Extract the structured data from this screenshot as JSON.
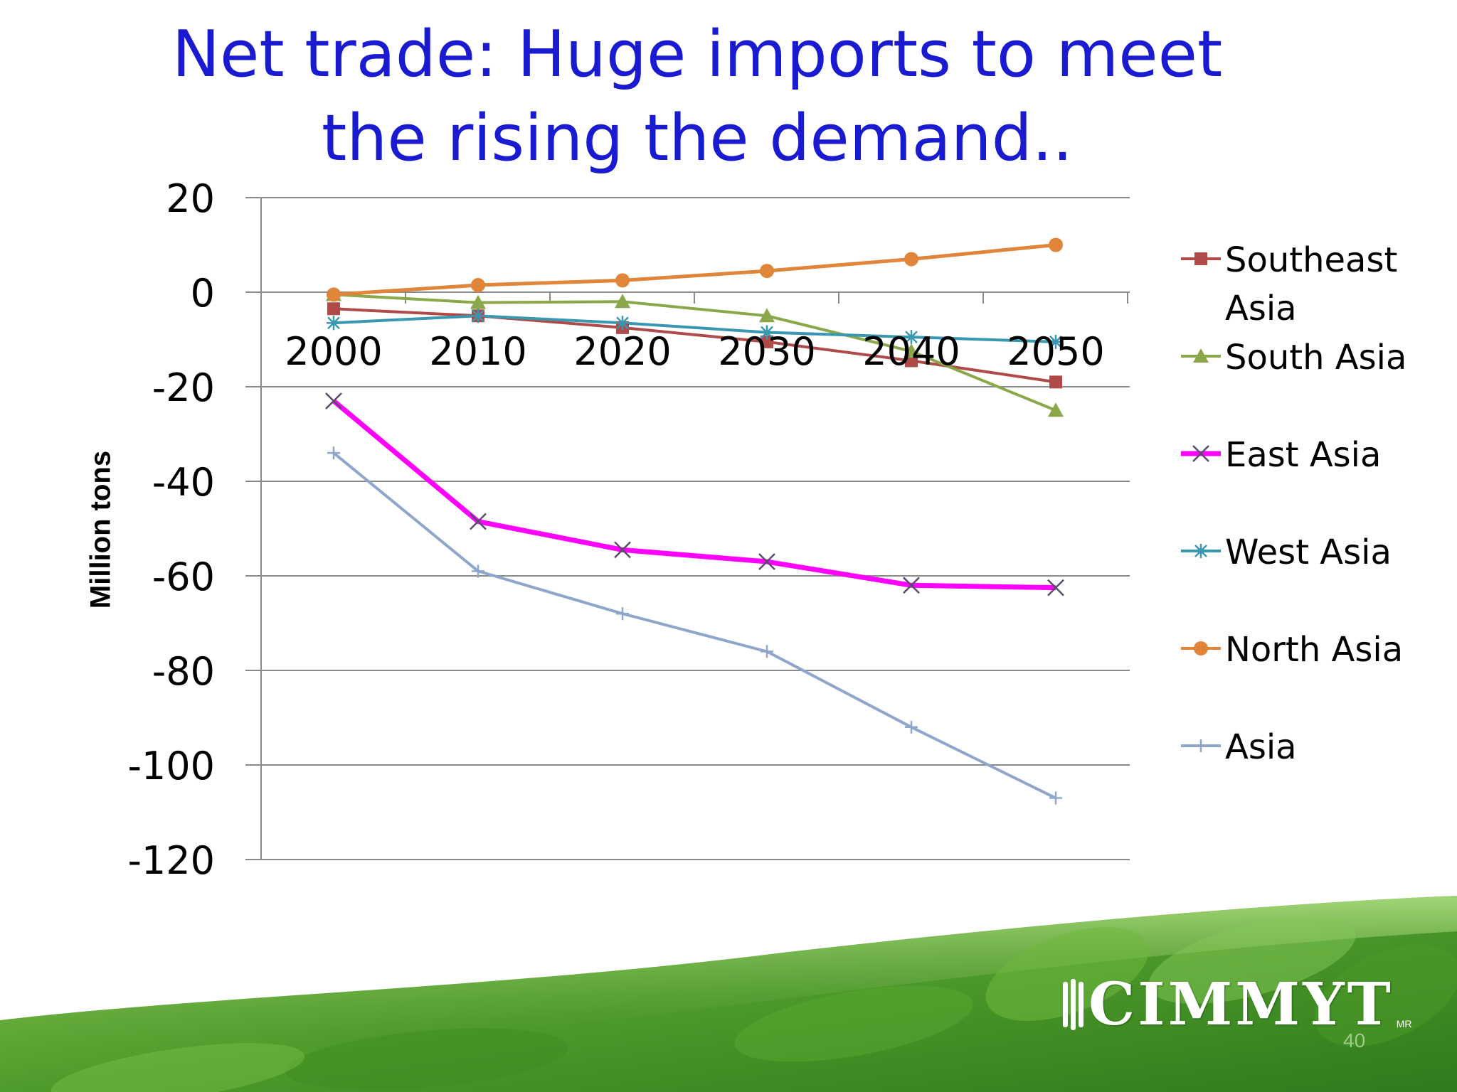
{
  "slide": {
    "title_line1": "Net trade: Huge imports to meet",
    "title_line2": "the rising the demand..",
    "page_number": "40",
    "logo_text": "CIMMYT",
    "logo_mark": "MR",
    "logo_icon": "wheat-icon"
  },
  "chart_data": {
    "type": "line",
    "title": "",
    "xlabel": "",
    "ylabel": "Million tons",
    "x": [
      "2000",
      "2010",
      "2020",
      "2030",
      "2040",
      "2050"
    ],
    "ylim": [
      -120,
      20
    ],
    "yticks": [
      "20",
      "0",
      "-20",
      "-40",
      "-60",
      "-80",
      "-100",
      "-120"
    ],
    "grid": true,
    "legend_position": "right",
    "series": [
      {
        "name": "Southeast Asia",
        "color": "#b04a48",
        "marker": "square",
        "values": [
          -3.5,
          -5,
          -7.5,
          -10.5,
          -14.5,
          -19
        ]
      },
      {
        "name": "South Asia",
        "color": "#8aa84a",
        "marker": "triangle",
        "values": [
          -0.5,
          -2.2,
          -2,
          -5,
          -12.5,
          -25
        ]
      },
      {
        "name": "East Asia",
        "color": "#ff00ff",
        "marker": "x",
        "values": [
          -23,
          -48.5,
          -54.5,
          -57,
          -62,
          -62.5
        ]
      },
      {
        "name": "West Asia",
        "color": "#3a97b0",
        "marker": "asterisk",
        "values": [
          -6.5,
          -5,
          -6.5,
          -8.5,
          -9.5,
          -10.5
        ]
      },
      {
        "name": "North Asia",
        "color": "#e0853a",
        "marker": "circle",
        "values": [
          -0.5,
          1.5,
          2.5,
          4.5,
          7,
          10
        ]
      },
      {
        "name": "Asia",
        "color": "#8fa6cc",
        "marker": "plus",
        "values": [
          -34,
          -59,
          -68,
          -76,
          -92,
          -107
        ]
      }
    ]
  }
}
